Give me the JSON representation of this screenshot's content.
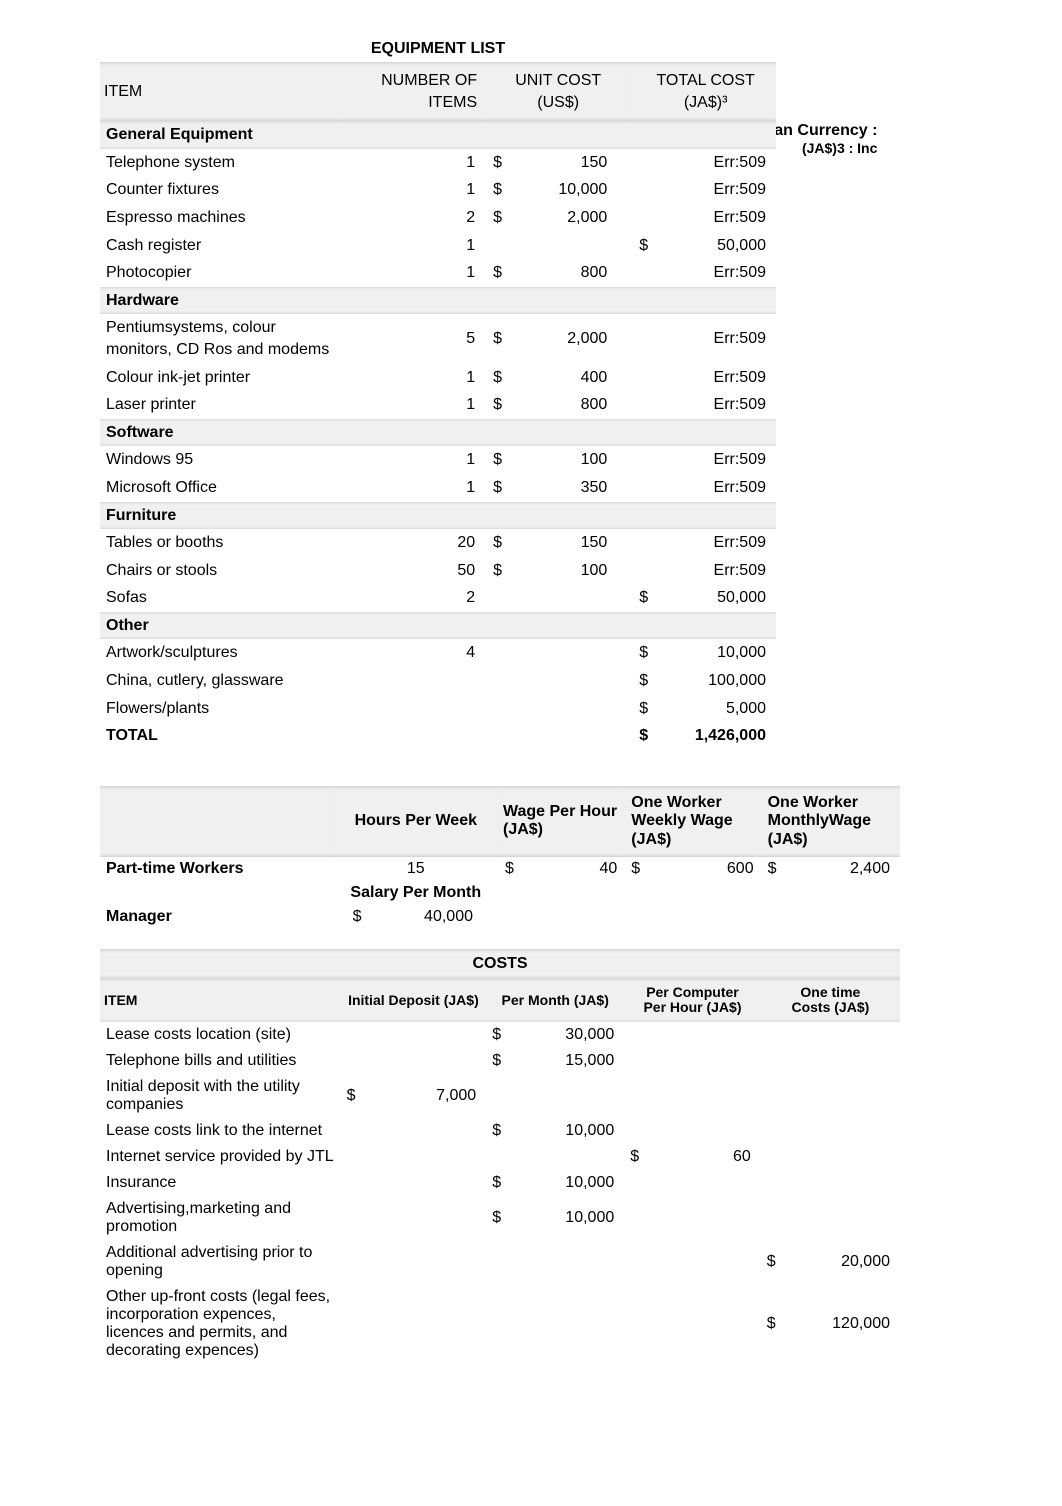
{
  "equipment": {
    "title": "EQUIPMENT LIST",
    "headers": {
      "item": "ITEM",
      "number": "NUMBER OF ITEMS",
      "unit_cost": "UNIT COST\n(US$)",
      "total_cost": "TOTAL COST\n(JA$)³"
    },
    "sections": [
      {
        "name": "General Equipment",
        "rows": [
          {
            "item": "Telephone system",
            "num": "1",
            "usym": "$",
            "uval": "150",
            "tsym": "",
            "tval": "Err:509"
          },
          {
            "item": "Counter fixtures",
            "num": "1",
            "usym": "$",
            "uval": "10,000",
            "tsym": "",
            "tval": "Err:509"
          },
          {
            "item": "Espresso machines",
            "num": "2",
            "usym": "$",
            "uval": "2,000",
            "tsym": "",
            "tval": "Err:509"
          },
          {
            "item": "Cash register",
            "num": "1",
            "usym": "",
            "uval": "",
            "tsym": "$",
            "tval": "50,000"
          },
          {
            "item": "Photocopier",
            "num": "1",
            "usym": "$",
            "uval": "800",
            "tsym": "",
            "tval": "Err:509"
          }
        ]
      },
      {
        "name": "Hardware",
        "rows": [
          {
            "item": "Pentiumsystems, colour monitors, CD Ros and modems",
            "num": "5",
            "usym": "$",
            "uval": "2,000",
            "tsym": "",
            "tval": "Err:509"
          },
          {
            "item": "Colour ink-jet printer",
            "num": "1",
            "usym": "$",
            "uval": "400",
            "tsym": "",
            "tval": "Err:509"
          },
          {
            "item": "Laser printer",
            "num": "1",
            "usym": "$",
            "uval": "800",
            "tsym": "",
            "tval": "Err:509"
          }
        ]
      },
      {
        "name": "Software",
        "rows": [
          {
            "item": "Windows 95",
            "num": "1",
            "usym": "$",
            "uval": "100",
            "tsym": "",
            "tval": "Err:509"
          },
          {
            "item": "Microsoft Office",
            "num": "1",
            "usym": "$",
            "uval": "350",
            "tsym": "",
            "tval": "Err:509"
          }
        ]
      },
      {
        "name": "Furniture",
        "rows": [
          {
            "item": "Tables or booths",
            "num": "20",
            "usym": "$",
            "uval": "150",
            "tsym": "",
            "tval": "Err:509"
          },
          {
            "item": "Chairs or stools",
            "num": "50",
            "usym": "$",
            "uval": "100",
            "tsym": "",
            "tval": "Err:509"
          },
          {
            "item": "Sofas",
            "num": "2",
            "usym": "",
            "uval": "",
            "tsym": "$",
            "tval": "50,000"
          }
        ]
      },
      {
        "name": "Other",
        "rows": [
          {
            "item": "Artwork/sculptures",
            "num": "4",
            "usym": "",
            "uval": "",
            "tsym": "$",
            "tval": "10,000"
          },
          {
            "item": "China, cutlery, glassware",
            "num": "",
            "usym": "",
            "uval": "",
            "tsym": "$",
            "tval": "100,000"
          },
          {
            "item": "Flowers/plants",
            "num": "",
            "usym": "",
            "uval": "",
            "tsym": "$",
            "tval": "5,000"
          }
        ]
      }
    ],
    "total": {
      "label": "TOTAL",
      "sym": "$",
      "val": "1,426,000"
    }
  },
  "currency_note": {
    "line1": "Jameican Currency :",
    "line2": "(JA$)3 : Inc"
  },
  "workers": {
    "headers": {
      "blank": "",
      "hpw": "Hours Per Week",
      "wph": "Wage Per Hour\n(JA$)",
      "wkly": "One Worker\nWeekly Wage\n(JA$)",
      "mthly": "One Worker\nMonthlyWage\n(JA$)"
    },
    "rows": [
      {
        "label": "Part-time Workers",
        "hpw": "15",
        "s1": "$",
        "v1": "40",
        "s2": "$",
        "v2": "600",
        "s3": "$",
        "v3": "2,400"
      }
    ],
    "salary_header": "Salary Per Month",
    "manager": {
      "label": "Manager",
      "sym": "$",
      "val": "40,000"
    }
  },
  "costs": {
    "title": "COSTS",
    "headers": {
      "item": "ITEM",
      "initial": "Initial Deposit (JA$)",
      "permonth": "Per Month (JA$)",
      "perhour": "Per Computer\nPer Hour (JA$)",
      "onetime": "One time\nCosts (JA$)"
    },
    "rows": [
      {
        "item": "Lease costs location (site)",
        "s1": "",
        "v1": "",
        "s2": "$",
        "v2": "30,000",
        "s3": "",
        "v3": "",
        "s4": "",
        "v4": ""
      },
      {
        "item": "Telephone bills and utilities",
        "s1": "",
        "v1": "",
        "s2": "$",
        "v2": "15,000",
        "s3": "",
        "v3": "",
        "s4": "",
        "v4": ""
      },
      {
        "item": "Initial deposit with the utility companies",
        "s1": "$",
        "v1": "7,000",
        "s2": "",
        "v2": "",
        "s3": "",
        "v3": "",
        "s4": "",
        "v4": ""
      },
      {
        "item": "Lease costs link to the internet",
        "s1": "",
        "v1": "",
        "s2": "$",
        "v2": "10,000",
        "s3": "",
        "v3": "",
        "s4": "",
        "v4": ""
      },
      {
        "item": "Internet service provided by JTL",
        "s1": "",
        "v1": "",
        "s2": "",
        "v2": "",
        "s3": "$",
        "v3": "60",
        "s4": "",
        "v4": ""
      },
      {
        "item": "Insurance",
        "s1": "",
        "v1": "",
        "s2": "$",
        "v2": "10,000",
        "s3": "",
        "v3": "",
        "s4": "",
        "v4": ""
      },
      {
        "item": "Advertising,marketing and promotion",
        "s1": "",
        "v1": "",
        "s2": "$",
        "v2": "10,000",
        "s3": "",
        "v3": "",
        "s4": "",
        "v4": ""
      },
      {
        "item": "Additional advertising prior to opening",
        "s1": "",
        "v1": "",
        "s2": "",
        "v2": "",
        "s3": "",
        "v3": "",
        "s4": "$",
        "v4": "20,000"
      },
      {
        "item": "Other up-front costs (legal fees, incorporation expences, licences and permits, and decorating expences)",
        "s1": "",
        "v1": "",
        "s2": "",
        "v2": "",
        "s3": "",
        "v3": "",
        "s4": "$",
        "v4": "120,000"
      }
    ]
  }
}
